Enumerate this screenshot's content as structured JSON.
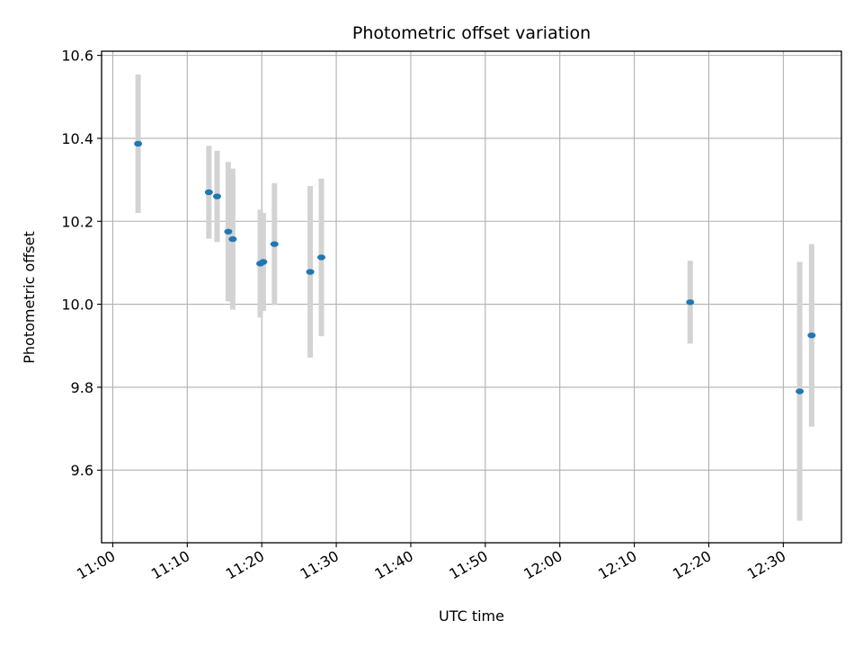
{
  "chart_data": {
    "type": "scatter",
    "title": "Photometric offset variation",
    "xlabel": "UTC time",
    "ylabel": "Photometric offset",
    "x_ticks": [
      "11:00",
      "11:10",
      "11:20",
      "11:30",
      "11:40",
      "11:50",
      "12:00",
      "12:10",
      "12:20",
      "12:30"
    ],
    "y_ticks": [
      "9.6",
      "9.8",
      "10.0",
      "10.2",
      "10.4",
      "10.6"
    ],
    "xlim": [
      "10:58.5",
      "12:37.8"
    ],
    "ylim": [
      9.425,
      10.61
    ],
    "grid": true,
    "point_color": "#1f77b4",
    "errorbar_color": "#d3d3d3",
    "points": [
      {
        "t": "11:03.4",
        "y": 10.387,
        "err": 0.167
      },
      {
        "t": "11:12.9",
        "y": 10.27,
        "err": 0.112
      },
      {
        "t": "11:14.0",
        "y": 10.26,
        "err": 0.11
      },
      {
        "t": "11:15.5",
        "y": 10.175,
        "err": 0.168
      },
      {
        "t": "11:16.1",
        "y": 10.157,
        "err": 0.17
      },
      {
        "t": "11:19.8",
        "y": 10.098,
        "err": 0.13
      },
      {
        "t": "11:20.2",
        "y": 10.102,
        "err": 0.118
      },
      {
        "t": "11:21.7",
        "y": 10.145,
        "err": 0.147
      },
      {
        "t": "11:26.5",
        "y": 10.078,
        "err": 0.207
      },
      {
        "t": "11:28.0",
        "y": 10.113,
        "err": 0.19
      },
      {
        "t": "12:17.5",
        "y": 10.005,
        "err": 0.1
      },
      {
        "t": "12:32.2",
        "y": 9.79,
        "err": 0.312
      },
      {
        "t": "12:33.8",
        "y": 9.925,
        "err": 0.22
      }
    ]
  }
}
